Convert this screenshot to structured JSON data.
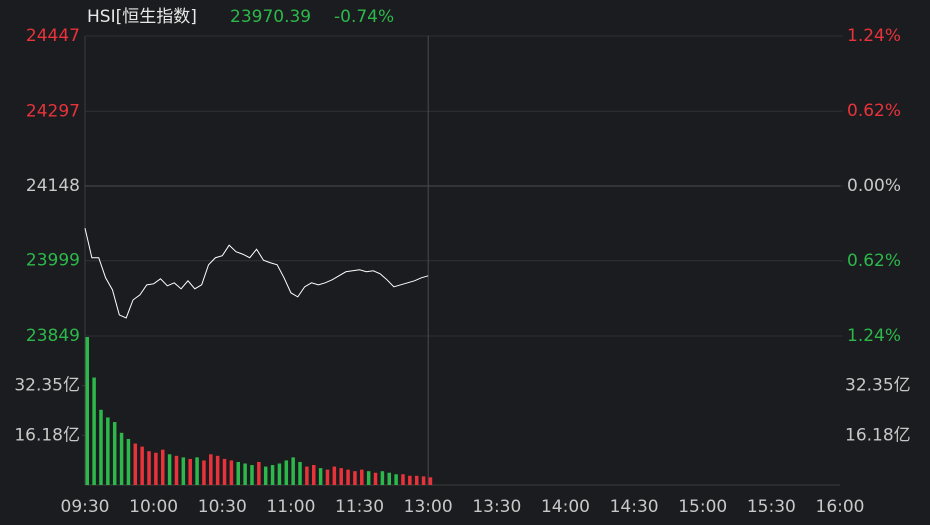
{
  "chart_data": [
    {
      "type": "line",
      "title": "HSI[恒生指数]",
      "last_value": 23970.39,
      "change_label": "-0.74%",
      "up_color": "#e8333b",
      "down_color": "#2cb84a",
      "flat_color": "#c8c8c8",
      "color": "#ffffff",
      "xlim": [
        "09:30",
        "16:00"
      ],
      "xticks": [
        "09:30",
        "10:00",
        "10:30",
        "11:00",
        "11:30",
        "13:00",
        "13:30",
        "14:00",
        "14:30",
        "15:00",
        "15:30",
        "16:00"
      ],
      "ylim": [
        23849,
        24447
      ],
      "yticks": [
        24447,
        24297,
        24148,
        23999,
        23849
      ],
      "y2lim": [
        -1.24,
        1.24
      ],
      "y2ticks": [
        {
          "value": 1.24,
          "label": "1.24%"
        },
        {
          "value": 0.62,
          "label": "0.62%"
        },
        {
          "value": 0,
          "label": "0.00%"
        },
        {
          "value": -0.62,
          "label": "0.62%"
        },
        {
          "value": -1.24,
          "label": "1.24%"
        }
      ],
      "grid": true,
      "x": [
        "09:30",
        "09:33",
        "09:36",
        "09:39",
        "09:42",
        "09:45",
        "09:48",
        "09:51",
        "09:54",
        "09:57",
        "10:00",
        "10:03",
        "10:06",
        "10:09",
        "10:12",
        "10:15",
        "10:18",
        "10:21",
        "10:24",
        "10:27",
        "10:30",
        "10:33",
        "10:36",
        "10:39",
        "10:42",
        "10:45",
        "10:48",
        "10:51",
        "10:54",
        "10:57",
        "11:00",
        "11:03",
        "11:06",
        "11:09",
        "11:12",
        "11:15",
        "11:18",
        "11:21",
        "11:24",
        "11:27",
        "11:30",
        "11:33",
        "11:36",
        "11:39",
        "11:42",
        "11:45",
        "11:48",
        "11:51",
        "11:54",
        "11:57",
        "12:00"
      ],
      "values": [
        24064,
        24005,
        24005,
        23965,
        23941,
        23891,
        23885,
        23921,
        23931,
        23951,
        23953,
        23963,
        23949,
        23955,
        23943,
        23959,
        23943,
        23951,
        23991,
        24005,
        24009,
        24030,
        24017,
        24012,
        24005,
        24022,
        24000,
        23995,
        23991,
        23965,
        23935,
        23927,
        23947,
        23955,
        23951,
        23955,
        23961,
        23969,
        23977,
        23979,
        23981,
        23977,
        23979,
        23973,
        23961,
        23947,
        23951,
        23955,
        23959,
        23965,
        23969
      ]
    },
    {
      "type": "bar",
      "ylim": [
        0,
        48.53
      ],
      "yticks": [
        {
          "value": 32.35,
          "label": "32.35亿"
        },
        {
          "value": 16.18,
          "label": "16.18亿"
        }
      ],
      "x": [
        "09:30",
        "09:33",
        "09:36",
        "09:39",
        "09:42",
        "09:45",
        "09:48",
        "09:51",
        "09:54",
        "09:57",
        "10:00",
        "10:03",
        "10:06",
        "10:09",
        "10:12",
        "10:15",
        "10:18",
        "10:21",
        "10:24",
        "10:27",
        "10:30",
        "10:33",
        "10:36",
        "10:39",
        "10:42",
        "10:45",
        "10:48",
        "10:51",
        "10:54",
        "10:57",
        "11:00",
        "11:03",
        "11:06",
        "11:09",
        "11:12",
        "11:15",
        "11:18",
        "11:21",
        "11:24",
        "11:27",
        "11:30",
        "11:33",
        "11:36",
        "11:39",
        "11:42",
        "11:45",
        "11:48",
        "11:51",
        "11:54",
        "11:57",
        "12:00"
      ],
      "values": [
        48.2,
        35.0,
        24.5,
        22.0,
        20.5,
        17.0,
        15.0,
        13.5,
        12.5,
        11.0,
        10.5,
        11.5,
        10.0,
        9.5,
        9.0,
        8.5,
        9.0,
        8.0,
        10.0,
        9.5,
        8.5,
        8.0,
        7.5,
        7.0,
        6.5,
        7.5,
        6.0,
        6.5,
        7.0,
        8.0,
        9.0,
        7.5,
        6.0,
        6.5,
        5.5,
        5.0,
        6.0,
        5.5,
        5.0,
        4.5,
        5.0,
        4.5,
        4.0,
        4.5,
        4.0,
        3.5,
        3.5,
        3.0,
        3.0,
        2.8,
        2.5
      ]
    }
  ]
}
